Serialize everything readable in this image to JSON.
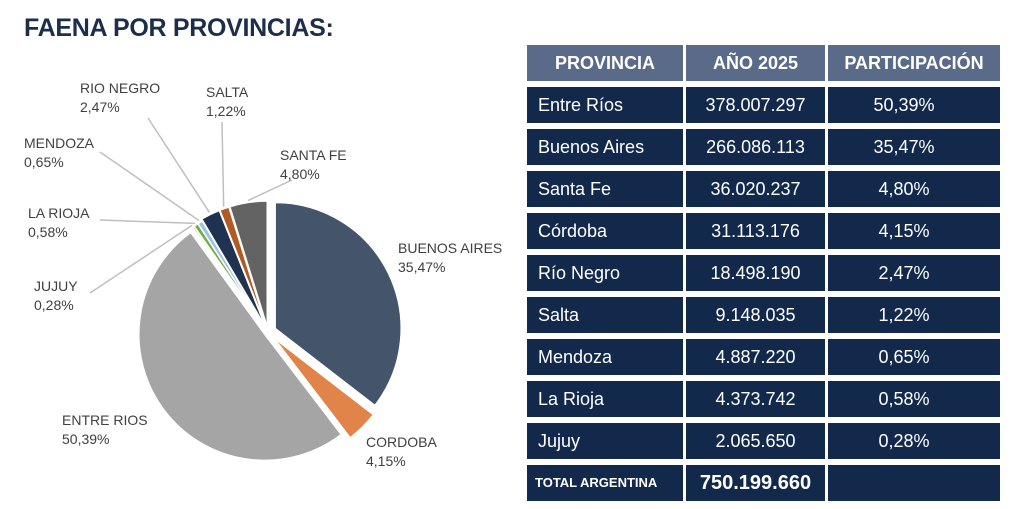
{
  "title": "FAENA POR PROVINCIAS:",
  "chart_data": {
    "type": "pie",
    "slices": [
      {
        "label": "BUENOS AIRES",
        "value": 35.47,
        "text": "35,47%",
        "color": "#44546a"
      },
      {
        "label": "CORDOBA",
        "value": 4.15,
        "text": "4,15%",
        "color": "#e0844a"
      },
      {
        "label": "ENTRE RIOS",
        "value": 50.39,
        "text": "50,39%",
        "color": "#a5a5a5"
      },
      {
        "label": "JUJUY",
        "value": 0.28,
        "text": "0,28%",
        "color": "#c9d9b8"
      },
      {
        "label": "LA RIOJA",
        "value": 0.58,
        "text": "0,58%",
        "color": "#70ad47"
      },
      {
        "label": "MENDOZA",
        "value": 0.65,
        "text": "0,65%",
        "color": "#9dc3e6"
      },
      {
        "label": "RIO NEGRO",
        "value": 2.47,
        "text": "2,47%",
        "color": "#1f3350"
      },
      {
        "label": "SALTA",
        "value": 1.22,
        "text": "1,22%",
        "color": "#b05a24"
      },
      {
        "label": "SANTA FE",
        "value": 4.8,
        "text": "4,80%",
        "color": "#636363"
      }
    ]
  },
  "table": {
    "headers": [
      "PROVINCIA",
      "AÑO 2025",
      "PARTICIPACIÓN"
    ],
    "rows": [
      [
        "Entre Ríos",
        "378.007.297",
        "50,39%"
      ],
      [
        "Buenos Aires",
        "266.086.113",
        "35,47%"
      ],
      [
        "Santa Fe",
        "36.020.237",
        "4,80%"
      ],
      [
        "Córdoba",
        "31.113.176",
        "4,15%"
      ],
      [
        "Río Negro",
        "18.498.190",
        "2,47%"
      ],
      [
        "Salta",
        "9.148.035",
        "1,22%"
      ],
      [
        "Mendoza",
        "4.887.220",
        "0,65%"
      ],
      [
        "La Rioja",
        "4.373.742",
        "0,58%"
      ],
      [
        "Jujuy",
        "2.065.650",
        "0,28%"
      ]
    ],
    "total": [
      "TOTAL ARGENTINA",
      "750.199.660",
      ""
    ]
  }
}
